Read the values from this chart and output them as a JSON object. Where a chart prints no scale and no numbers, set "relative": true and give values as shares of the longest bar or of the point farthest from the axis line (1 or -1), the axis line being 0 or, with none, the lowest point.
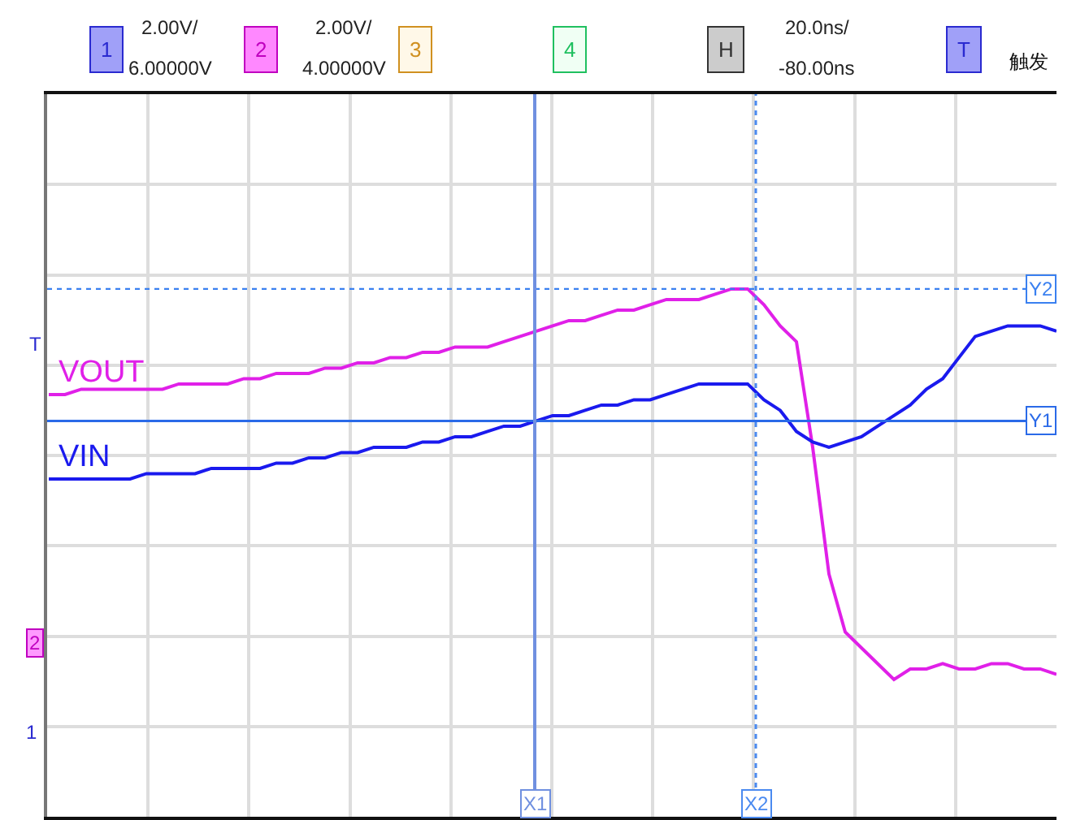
{
  "chart_data": {
    "type": "line",
    "relative": true,
    "grid": true,
    "legend": false,
    "marker": "none",
    "line_style": "solid",
    "categories": [
      null,
      null,
      null,
      null,
      null,
      null,
      null,
      null,
      null,
      null,
      null,
      null,
      null,
      null,
      null,
      null,
      null,
      null,
      null,
      null,
      null,
      null,
      null,
      null,
      null,
      null,
      null,
      null,
      null,
      null,
      null,
      null,
      null,
      null,
      null,
      null,
      null,
      null,
      null,
      null,
      null,
      null,
      null,
      null,
      null,
      null,
      null,
      null,
      null,
      null,
      null,
      null,
      null,
      null,
      null,
      null,
      null,
      null,
      null,
      null,
      null,
      null,
      null
    ],
    "series": [
      {
        "name": "VOUT",
        "color": "#e020e8",
        "values": [
          0.8,
          0.8,
          0.81,
          0.81,
          0.81,
          0.81,
          0.81,
          0.81,
          0.82,
          0.82,
          0.82,
          0.82,
          0.83,
          0.83,
          0.84,
          0.84,
          0.84,
          0.85,
          0.85,
          0.86,
          0.86,
          0.87,
          0.87,
          0.88,
          0.88,
          0.89,
          0.89,
          0.89,
          0.9,
          0.91,
          0.92,
          0.93,
          0.94,
          0.94,
          0.95,
          0.96,
          0.96,
          0.97,
          0.98,
          0.98,
          0.98,
          0.99,
          1.0,
          1.0,
          0.97,
          0.93,
          0.9,
          0.7,
          0.46,
          0.35,
          0.32,
          0.29,
          0.26,
          0.28,
          0.28,
          0.29,
          0.28,
          0.28,
          0.29,
          0.29,
          0.28,
          0.28,
          0.27
        ]
      },
      {
        "name": "VIN",
        "color": "#1a1aee",
        "values": [
          0.64,
          0.64,
          0.64,
          0.64,
          0.64,
          0.64,
          0.65,
          0.65,
          0.65,
          0.65,
          0.66,
          0.66,
          0.66,
          0.66,
          0.67,
          0.67,
          0.68,
          0.68,
          0.69,
          0.69,
          0.7,
          0.7,
          0.7,
          0.71,
          0.71,
          0.72,
          0.72,
          0.73,
          0.74,
          0.74,
          0.75,
          0.76,
          0.76,
          0.77,
          0.78,
          0.78,
          0.79,
          0.79,
          0.8,
          0.81,
          0.82,
          0.82,
          0.82,
          0.82,
          0.79,
          0.77,
          0.73,
          0.71,
          0.7,
          0.71,
          0.72,
          0.74,
          0.76,
          0.78,
          0.81,
          0.83,
          0.87,
          0.91,
          0.92,
          0.93,
          0.93,
          0.93,
          0.92
        ]
      }
    ],
    "ref_lines": [
      {
        "axis": "y",
        "value": 0.75,
        "label": "Y1",
        "color": "#2a6ae8",
        "line_style": "solid"
      },
      {
        "axis": "y",
        "value": 1.0,
        "label": "Y2",
        "color": "#3a80f0",
        "line_style": "dotted"
      }
    ],
    "annotations": [
      "2.00V/",
      "6.00000V",
      "2.00V/",
      "4.00000V",
      "20.0ns/",
      "-80.00ns",
      "1",
      "2",
      "3",
      "4",
      "H",
      "T",
      "触发",
      "T",
      "2",
      "1",
      "X1",
      "X2"
    ]
  }
}
